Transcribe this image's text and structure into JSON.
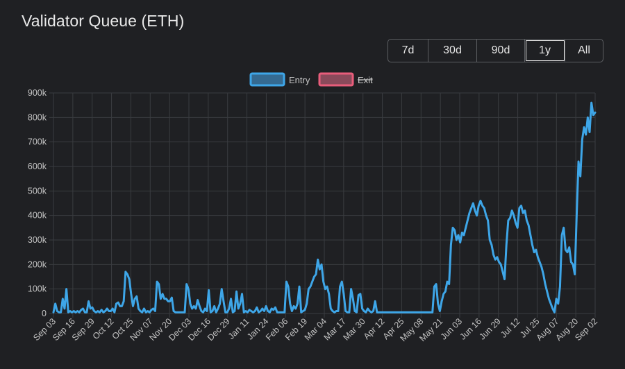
{
  "page": {
    "title": "Validator Queue (ETH)"
  },
  "range_buttons": [
    {
      "label": "7d",
      "active": false
    },
    {
      "label": "30d",
      "active": false
    },
    {
      "label": "90d",
      "active": false
    },
    {
      "label": "1y",
      "active": true
    },
    {
      "label": "All",
      "active": false
    }
  ],
  "colors": {
    "entry": "#3ea6e8",
    "entry_fill": "#356a91",
    "exit": "#e85d7b",
    "exit_fill": "#8a4a5b",
    "grid": "#3a3c40",
    "tick": "#c3c3c3"
  },
  "chart_data": {
    "type": "line",
    "title": "",
    "xlabel": "",
    "ylabel": "",
    "ylim": [
      0,
      900000
    ],
    "y_ticks": [
      "0",
      "100k",
      "200k",
      "300k",
      "400k",
      "500k",
      "600k",
      "700k",
      "800k",
      "900k"
    ],
    "x_ticks": [
      "Sep 03",
      "Sep 16",
      "Sep 29",
      "Oct 12",
      "Oct 25",
      "Nov 07",
      "Nov 20",
      "Dec 03",
      "Dec 16",
      "Dec 29",
      "Jan 11",
      "Jan 24",
      "Feb 06",
      "Feb 19",
      "Mar 04",
      "Mar 17",
      "Mar 30",
      "Apr 12",
      "Apr 25",
      "May 08",
      "May 21",
      "Jun 03",
      "Jun 16",
      "Jun 29",
      "Jul 12",
      "Jul 25",
      "Aug 07",
      "Aug 20",
      "Sep 02"
    ],
    "grid": true,
    "legend": "top-center",
    "legend_items": [
      {
        "name": "Entry",
        "hidden": false
      },
      {
        "name": "Exit",
        "hidden": true
      }
    ],
    "series": [
      {
        "name": "Entry",
        "color": "#3ea6e8",
        "values": [
          5000,
          40000,
          10000,
          5000,
          5000,
          60000,
          20000,
          100000,
          5000,
          10000,
          5000,
          10000,
          5000,
          10000,
          5000,
          15000,
          20000,
          5000,
          5000,
          50000,
          20000,
          25000,
          10000,
          5000,
          10000,
          5000,
          15000,
          5000,
          10000,
          20000,
          10000,
          10000,
          20000,
          5000,
          40000,
          45000,
          30000,
          30000,
          50000,
          170000,
          160000,
          140000,
          80000,
          30000,
          60000,
          70000,
          20000,
          10000,
          5000,
          20000,
          5000,
          10000,
          5000,
          15000,
          20000,
          10000,
          130000,
          120000,
          60000,
          80000,
          60000,
          60000,
          50000,
          50000,
          65000,
          10000,
          5000,
          5000,
          5000,
          5000,
          5000,
          5000,
          120000,
          100000,
          40000,
          20000,
          30000,
          20000,
          55000,
          30000,
          10000,
          5000,
          20000,
          10000,
          95000,
          5000,
          10000,
          30000,
          5000,
          20000,
          40000,
          100000,
          50000,
          5000,
          5000,
          20000,
          60000,
          5000,
          10000,
          90000,
          20000,
          40000,
          80000,
          5000,
          10000,
          5000,
          15000,
          10000,
          5000,
          10000,
          25000,
          5000,
          10000,
          20000,
          10000,
          30000,
          10000,
          5000,
          20000,
          15000,
          25000,
          5000,
          5000,
          5000,
          5000,
          5000,
          130000,
          110000,
          40000,
          10000,
          30000,
          20000,
          40000,
          110000,
          5000,
          10000,
          15000,
          40000,
          100000,
          110000,
          130000,
          150000,
          160000,
          220000,
          180000,
          200000,
          130000,
          100000,
          110000,
          80000,
          20000,
          10000,
          5000,
          10000,
          10000,
          110000,
          130000,
          80000,
          10000,
          5000,
          5000,
          100000,
          60000,
          10000,
          5000,
          75000,
          80000,
          20000,
          10000,
          5000,
          20000,
          10000,
          5000,
          10000,
          50000,
          5000,
          5000,
          5000,
          5000,
          5000,
          5000,
          5000,
          5000,
          5000,
          5000,
          5000,
          5000,
          5000,
          5000,
          5000,
          5000,
          5000,
          5000,
          5000,
          5000,
          5000,
          5000,
          5000,
          5000,
          5000,
          5000,
          5000,
          5000,
          5000,
          5000,
          5000,
          110000,
          120000,
          40000,
          10000,
          50000,
          80000,
          90000,
          130000,
          120000,
          280000,
          350000,
          340000,
          300000,
          320000,
          290000,
          330000,
          320000,
          350000,
          380000,
          410000,
          430000,
          450000,
          420000,
          400000,
          440000,
          460000,
          440000,
          430000,
          400000,
          380000,
          300000,
          280000,
          240000,
          220000,
          230000,
          210000,
          200000,
          170000,
          140000,
          280000,
          380000,
          390000,
          420000,
          400000,
          370000,
          350000,
          430000,
          440000,
          410000,
          420000,
          380000,
          360000,
          320000,
          280000,
          250000,
          260000,
          230000,
          210000,
          190000,
          160000,
          120000,
          90000,
          60000,
          40000,
          20000,
          5000,
          60000,
          40000,
          110000,
          320000,
          350000,
          260000,
          250000,
          270000,
          210000,
          200000,
          160000,
          400000,
          620000,
          560000,
          710000,
          760000,
          730000,
          800000,
          740000,
          860000,
          810000,
          820000
        ]
      }
    ]
  }
}
